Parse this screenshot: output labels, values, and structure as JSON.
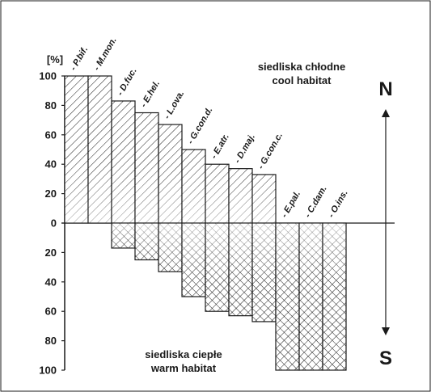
{
  "chart_data": {
    "type": "bar",
    "ylabel": "[%]",
    "ylim": [
      -100,
      100
    ],
    "y_tick_labels": [
      "100",
      "80",
      "60",
      "40",
      "20",
      "0",
      "20",
      "40",
      "60",
      "80",
      "100"
    ],
    "categories": [
      "- P.bif.",
      "- M.mon.",
      "- D.fuc.",
      "- E.hel.",
      "- L.ova.",
      "- G.con.d.",
      "- E.atr.",
      "- D.maj.",
      "- G.con.c.",
      "- E.pal.",
      "- C.dam.",
      "- O.ins."
    ],
    "series": [
      {
        "name": "siedliska chłodne / cool habitat",
        "values": [
          100,
          100,
          83,
          75,
          67,
          50,
          40,
          37,
          33,
          0,
          0,
          0
        ]
      },
      {
        "name": "siedliska ciepłe / warm habitat",
        "values": [
          0,
          0,
          17,
          25,
          33,
          50,
          60,
          63,
          67,
          100,
          100,
          100
        ]
      }
    ],
    "annotations": {
      "cool_pl": "siedliska chłodne",
      "cool_en": "cool habitat",
      "warm_pl": "siedliska ciepłe",
      "warm_en": "warm habitat",
      "north": "N",
      "south": "S"
    },
    "grid": false,
    "legend": "none"
  }
}
